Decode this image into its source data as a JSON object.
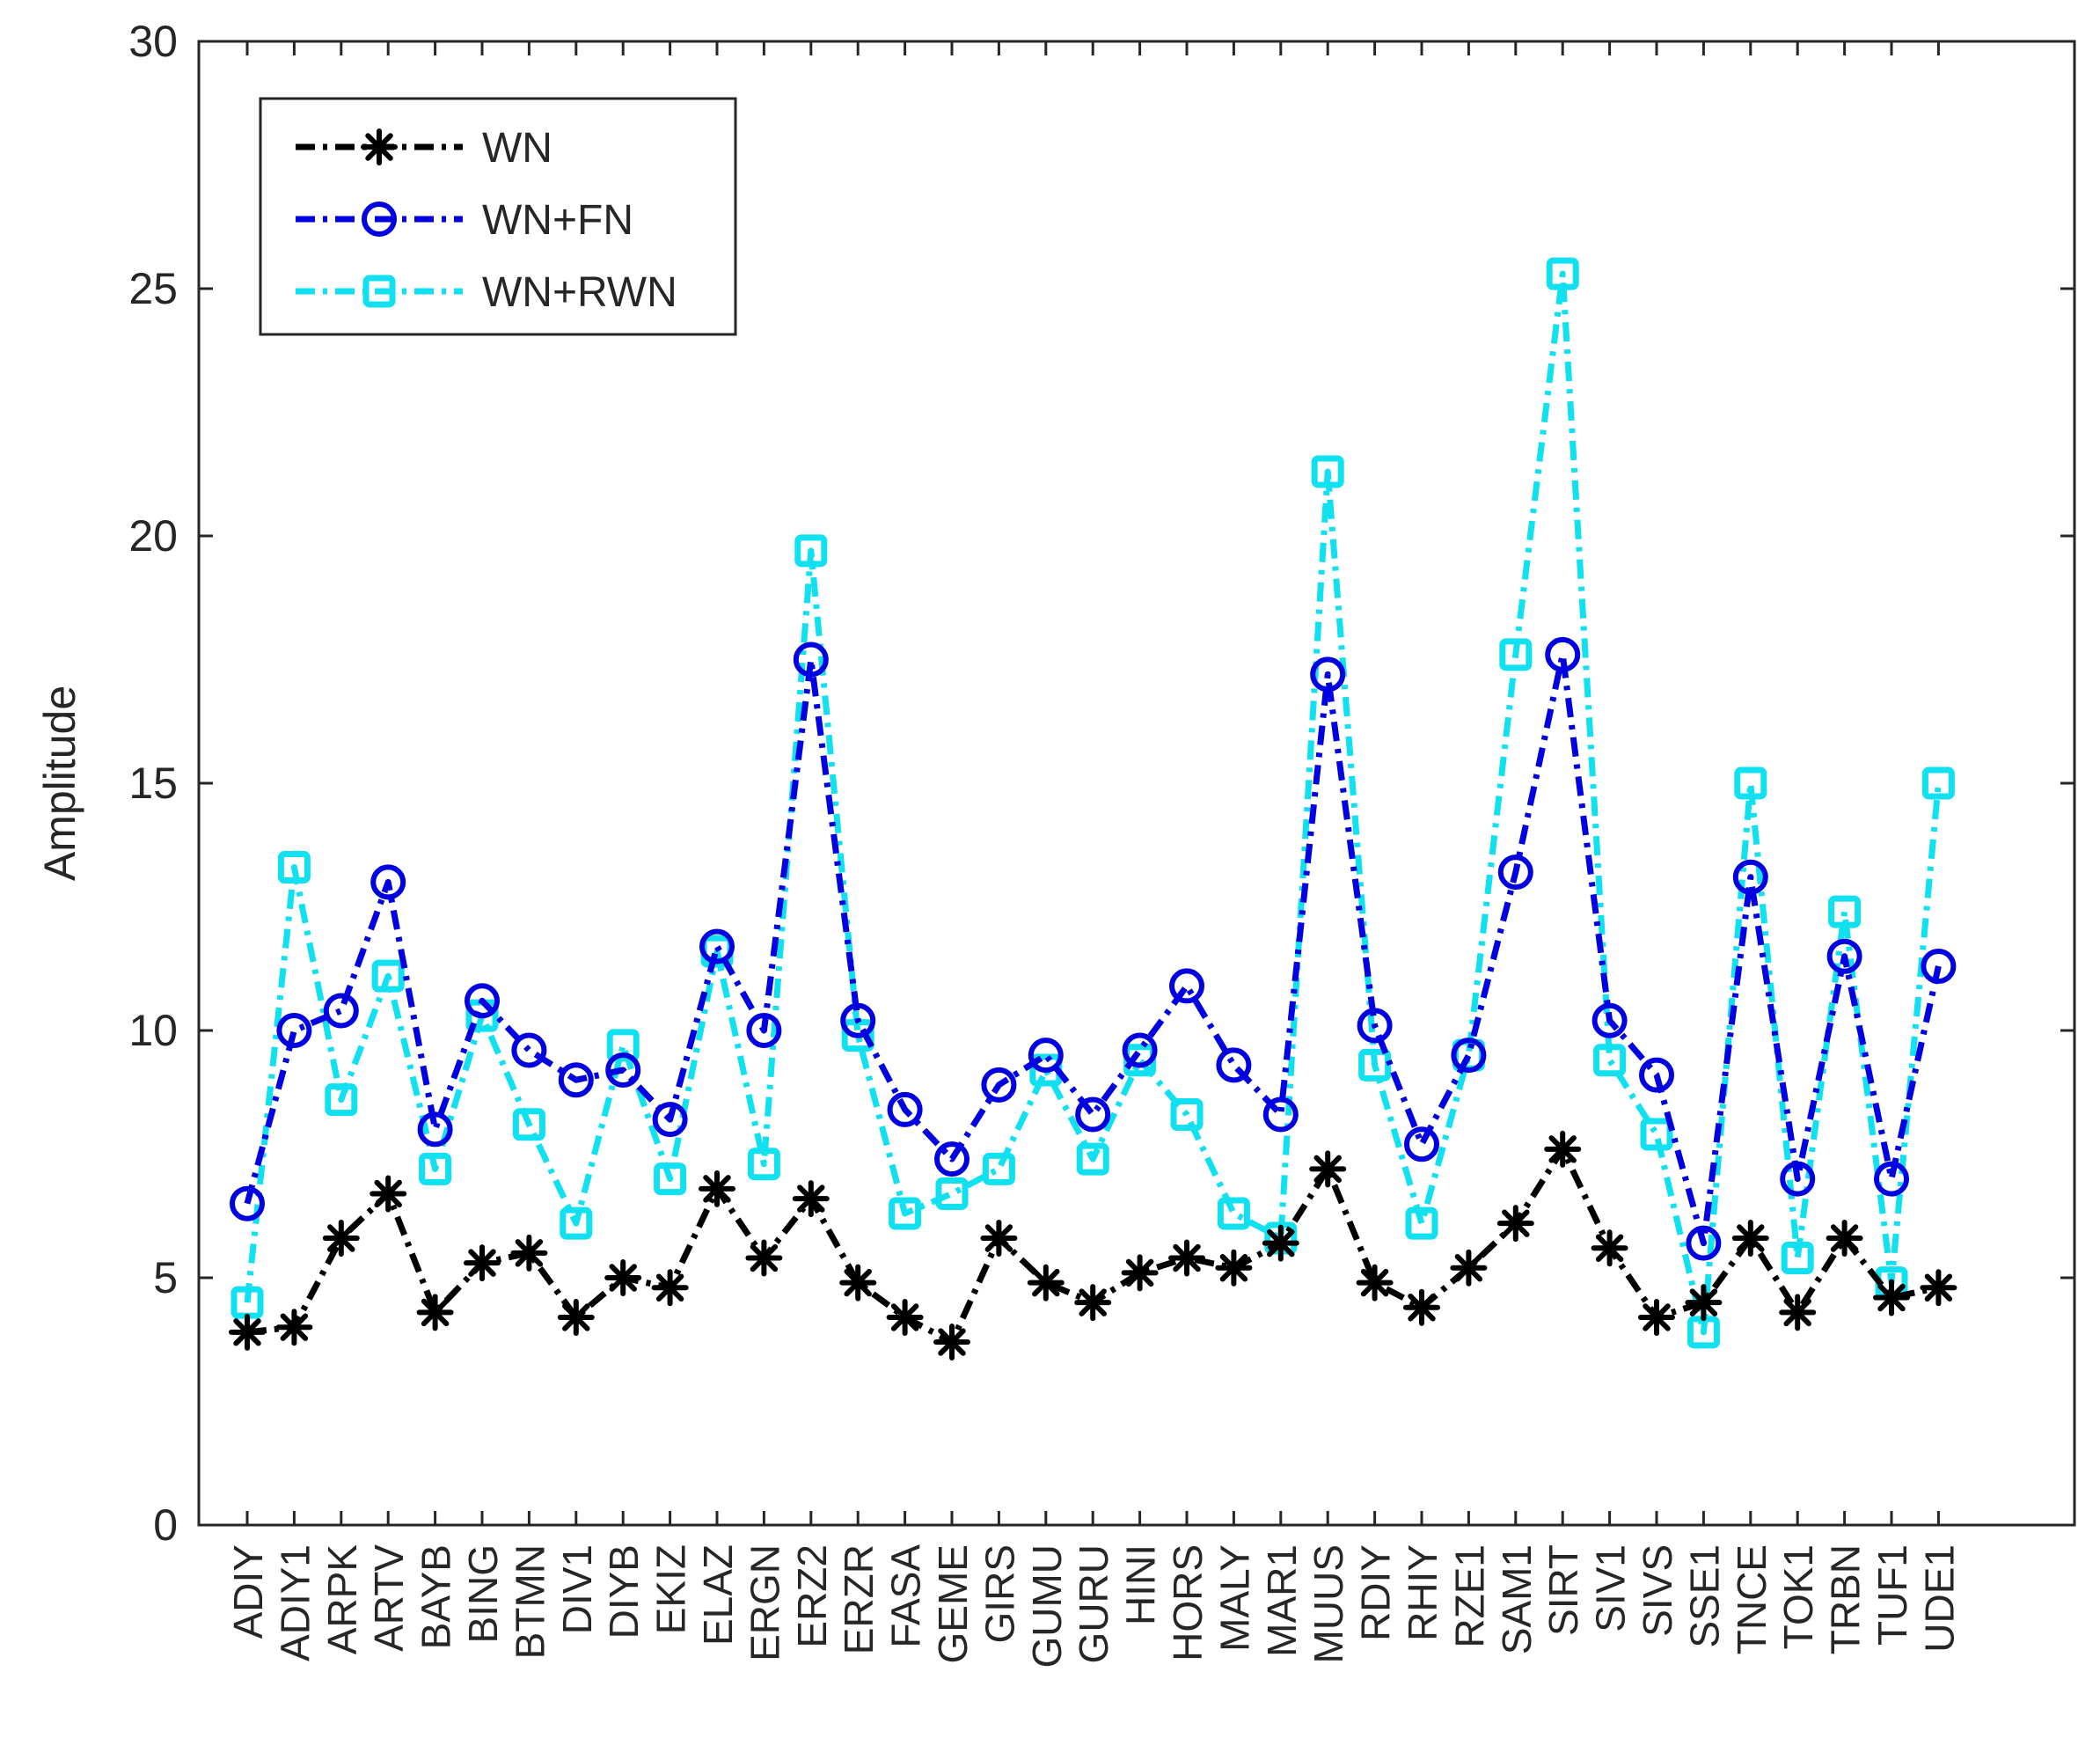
{
  "chart_data": {
    "type": "line",
    "title": "",
    "xlabel": "",
    "ylabel": "Amplitude",
    "ylim": [
      0,
      30
    ],
    "yticks": [
      0,
      5,
      10,
      15,
      20,
      25,
      30
    ],
    "grid": false,
    "legend_position": "top-left",
    "categories": [
      "ADIY",
      "ADIY1",
      "ARPK",
      "ARTV",
      "BAYB",
      "BING",
      "BTMN",
      "DIV1",
      "DIYB",
      "EKIZ",
      "ELAZ",
      "ERGN",
      "ERZ2",
      "ERZR",
      "FASA",
      "GEME",
      "GIRS",
      "GUMU",
      "GURU",
      "HINI",
      "HORS",
      "MALY",
      "MAR1",
      "MUUS",
      "RDIY",
      "RHIY",
      "RZE1",
      "SAM1",
      "SIRT",
      "SIV1",
      "SIVS",
      "SSE1",
      "TNCE",
      "TOK1",
      "TRBN",
      "TUF1",
      "UDE1"
    ],
    "series": [
      {
        "name": "WN",
        "color": "#000000",
        "marker": "asterisk",
        "values": [
          3.9,
          4.0,
          5.8,
          6.7,
          4.3,
          5.3,
          5.5,
          4.2,
          5.0,
          4.8,
          6.8,
          5.4,
          6.6,
          4.9,
          4.2,
          3.7,
          5.8,
          4.9,
          4.5,
          5.1,
          5.4,
          5.2,
          5.7,
          7.2,
          4.9,
          4.4,
          5.2,
          6.1,
          7.6,
          5.6,
          4.2,
          4.5,
          5.8,
          4.3,
          5.8,
          4.6,
          4.8
        ]
      },
      {
        "name": "WN+FN",
        "color": "#0000e0",
        "marker": "circle",
        "values": [
          6.5,
          10.0,
          10.4,
          13.0,
          8.0,
          10.6,
          9.6,
          9.0,
          9.2,
          8.2,
          11.7,
          10.0,
          17.5,
          10.2,
          8.4,
          7.4,
          8.9,
          9.5,
          8.3,
          9.6,
          10.9,
          9.3,
          8.3,
          17.2,
          10.1,
          7.7,
          9.5,
          13.2,
          17.6,
          10.2,
          9.1,
          5.7,
          13.1,
          7.0,
          11.5,
          7.0,
          11.3
        ]
      },
      {
        "name": "WN+RWN",
        "color": "#10e0f0",
        "marker": "square",
        "values": [
          4.5,
          13.3,
          8.6,
          11.1,
          7.2,
          10.3,
          8.1,
          6.1,
          9.7,
          7.0,
          11.6,
          7.3,
          19.7,
          9.9,
          6.3,
          6.7,
          7.2,
          9.2,
          7.4,
          9.4,
          8.3,
          6.3,
          5.8,
          21.3,
          9.3,
          6.1,
          9.5,
          17.6,
          25.3,
          9.4,
          7.9,
          3.9,
          15.0,
          5.4,
          12.4,
          4.9,
          15.0
        ]
      }
    ]
  }
}
